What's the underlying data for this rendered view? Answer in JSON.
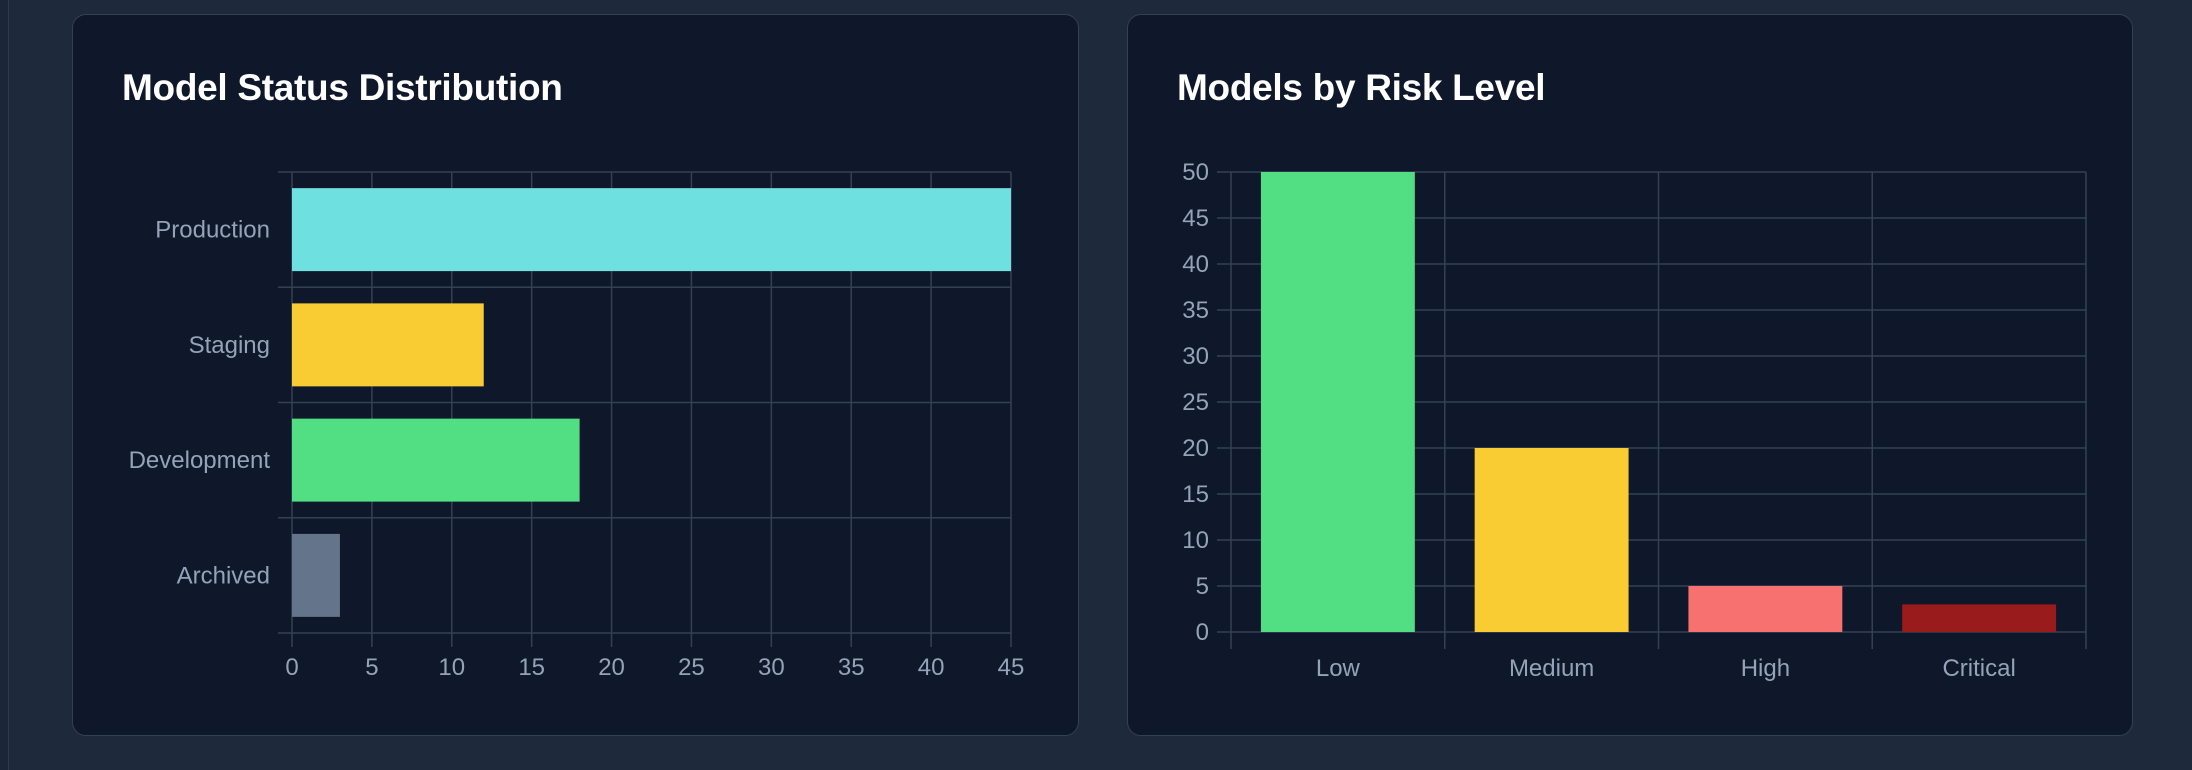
{
  "cards": {
    "status": {
      "title": "Model Status Distribution"
    },
    "risk": {
      "title": "Models by Risk Level"
    }
  },
  "chart_data": [
    {
      "type": "bar",
      "orientation": "horizontal",
      "title": "Model Status Distribution",
      "categories": [
        "Production",
        "Staging",
        "Development",
        "Archived"
      ],
      "values": [
        45,
        12,
        18,
        3
      ],
      "colors": [
        "#6ee0e0",
        "#facc33",
        "#52de83",
        "#64748b"
      ],
      "xlim": [
        0,
        45
      ],
      "xticks": [
        0,
        5,
        10,
        15,
        20,
        25,
        30,
        35,
        40,
        45
      ],
      "xlabel": "",
      "ylabel": "",
      "grid": true,
      "legend": "none"
    },
    {
      "type": "bar",
      "orientation": "vertical",
      "title": "Models by Risk Level",
      "categories": [
        "Low",
        "Medium",
        "High",
        "Critical"
      ],
      "values": [
        50,
        20,
        5,
        3
      ],
      "colors": [
        "#52de83",
        "#facc33",
        "#f87171",
        "#991b1b"
      ],
      "ylim": [
        0,
        50
      ],
      "yticks": [
        0,
        5,
        10,
        15,
        20,
        25,
        30,
        35,
        40,
        45,
        50
      ],
      "xlabel": "",
      "ylabel": "",
      "grid": true,
      "legend": "none"
    }
  ]
}
